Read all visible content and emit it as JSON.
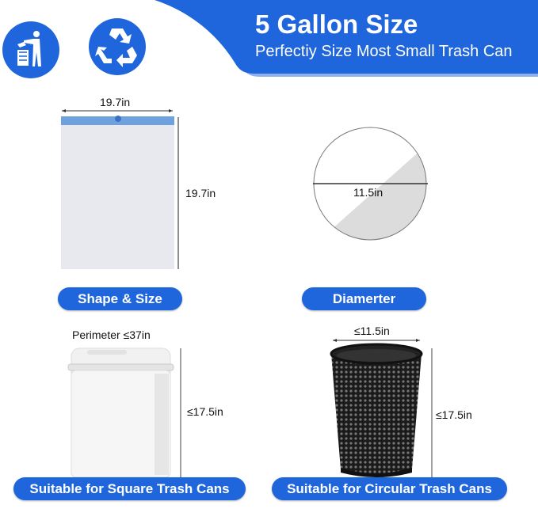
{
  "header": {
    "title": "5 Gallon Size",
    "subtitle": "Perfectiy Size Most Small Trash Can",
    "accent": "#1f66dd"
  },
  "icons": [
    "trash-disposal-icon",
    "recycle-icon"
  ],
  "bag": {
    "width": "19.7in",
    "height": "19.7in",
    "label": "Shape & Size"
  },
  "diameter": {
    "value": "11.5in",
    "label": "Diamerter"
  },
  "square_can": {
    "perimeter": "Perimeter ≤37in",
    "height": "≤17.5in",
    "label": "Suitable for Square Trash Cans"
  },
  "circular_can": {
    "width": "≤11.5in",
    "height": "≤17.5in",
    "label": "Suitable for Circular Trash Cans"
  }
}
